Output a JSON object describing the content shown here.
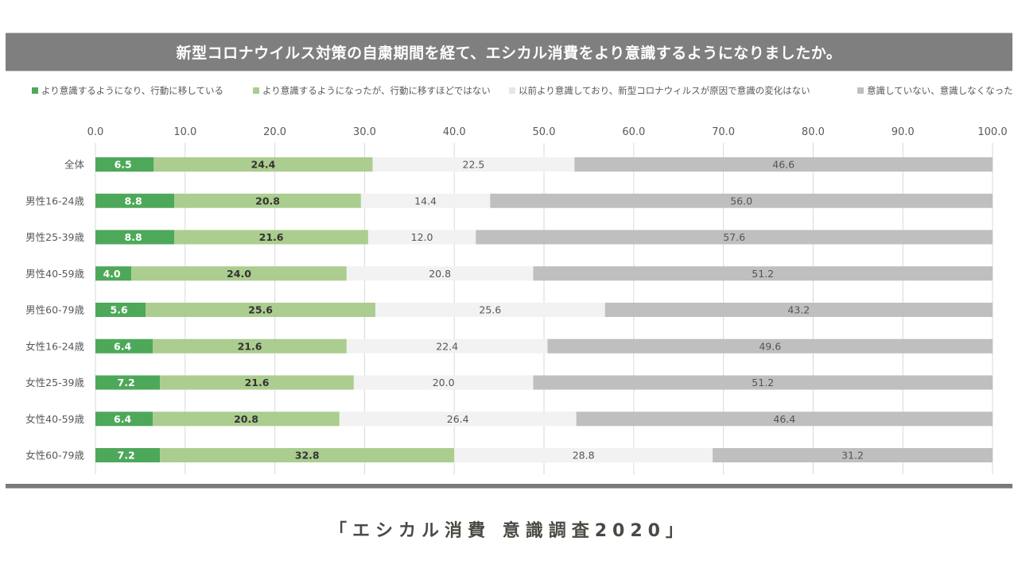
{
  "title": "新型コロナウイルス対策の自粛期間を経て、エシカル消費をより意識するようになりましたか。",
  "footer": "「エシカル消費 意識調査2020」",
  "chart_data": {
    "type": "bar",
    "orientation": "horizontal",
    "stacked": true,
    "title": "新型コロナウイルス対策の自粛期間を経て、エシカル消費をより意識するようになりましたか。",
    "xlabel": "",
    "ylabel": "",
    "xlim": [
      0,
      100
    ],
    "xticks": [
      "0.0",
      "10.0",
      "20.0",
      "30.0",
      "40.0",
      "50.0",
      "60.0",
      "70.0",
      "80.0",
      "90.0",
      "100.0"
    ],
    "grid": true,
    "legend_position": "top",
    "categories": [
      "全体",
      "男性16-24歳",
      "男性25-39歳",
      "男性40-59歳",
      "男性60-79歳",
      "女性16-24歳",
      "女性25-39歳",
      "女性40-59歳",
      "女性60-79歳"
    ],
    "series": [
      {
        "name": "より意識するようになり、行動に移している",
        "color": "#4ea85a",
        "label_color": "#ffffff",
        "label_bold": true,
        "values": [
          6.5,
          8.8,
          8.8,
          4.0,
          5.6,
          6.4,
          7.2,
          6.4,
          7.2
        ]
      },
      {
        "name": "より意識するようになったが、行動に移すほどではない",
        "color": "#abcd8f",
        "label_color": "#333333",
        "label_bold": true,
        "values": [
          24.4,
          20.8,
          21.6,
          24.0,
          25.6,
          21.6,
          21.6,
          20.8,
          32.8
        ]
      },
      {
        "name": "以前より意識しており、新型コロナウィルスが原因で意識の変化はない",
        "color": "#f2f2f2",
        "label_color": "#555555",
        "label_bold": false,
        "values": [
          22.5,
          14.4,
          12.0,
          20.8,
          25.6,
          22.4,
          20.0,
          26.4,
          28.8
        ]
      },
      {
        "name": "意識していない、意識しなくなった",
        "color": "#bfbfbf",
        "label_color": "#555555",
        "label_bold": false,
        "values": [
          46.6,
          56.0,
          57.6,
          51.2,
          43.2,
          49.6,
          51.2,
          46.4,
          31.2
        ]
      }
    ]
  }
}
